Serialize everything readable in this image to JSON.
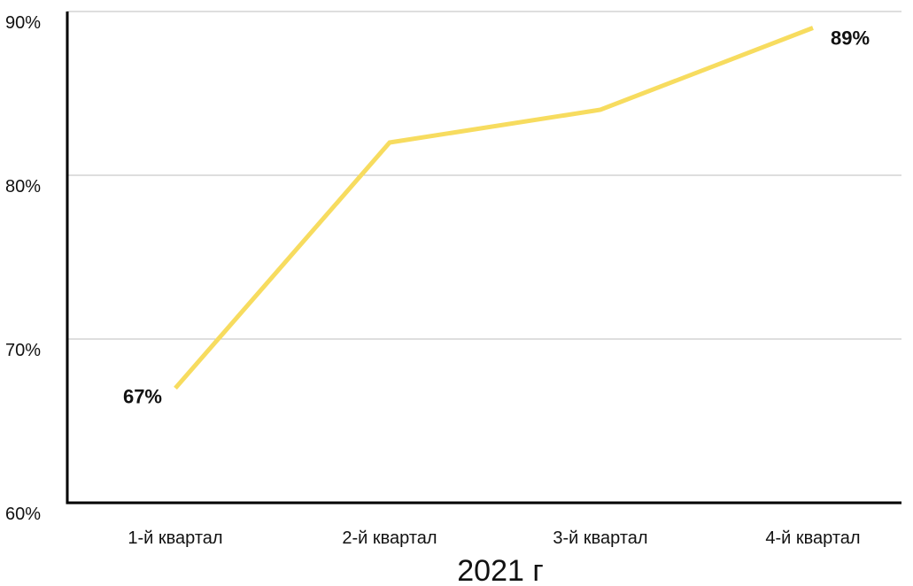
{
  "chart_data": {
    "type": "line",
    "title": "",
    "xlabel": "2021 г",
    "ylabel": "",
    "categories": [
      "1-й квартал",
      "2-й квартал",
      "3-й квартал",
      "4-й квартал"
    ],
    "series": [
      {
        "values": [
          67,
          82,
          84,
          89
        ],
        "color": "#F7DC5F"
      }
    ],
    "ylim": [
      60,
      90
    ],
    "yticks": [
      60,
      70,
      80,
      90
    ],
    "ytick_labels": [
      "60%",
      "70%",
      "80%",
      "90%"
    ],
    "data_labels": [
      {
        "index": 0,
        "text": "67%"
      },
      {
        "index": 3,
        "text": "89%"
      }
    ],
    "grid": true,
    "legend": "none"
  }
}
